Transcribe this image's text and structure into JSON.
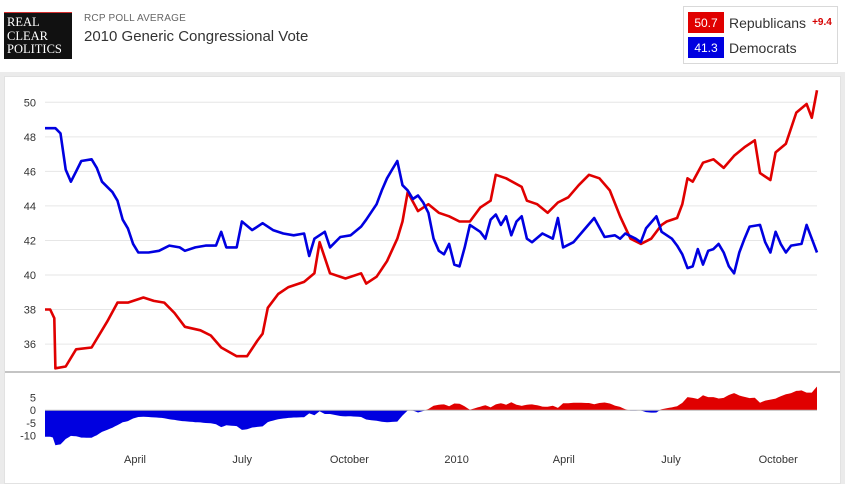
{
  "header": {
    "logo_lines": [
      "REAL",
      "CLEAR",
      "POLITICS"
    ],
    "subtitle": "RCP POLL AVERAGE",
    "title": "2010 Generic Congressional Vote"
  },
  "legend": {
    "republicans": {
      "value": "50.7",
      "label": "Republicans",
      "spread": "+9.4",
      "color": "#e00000"
    },
    "democrats": {
      "value": "41.3",
      "label": "Democrats",
      "color": "#0000e0"
    }
  },
  "chart_data": {
    "type": "line",
    "x_labels": [
      "April",
      "July",
      "October",
      "2010",
      "April",
      "July",
      "October"
    ],
    "y_ticks": [
      36,
      38,
      40,
      42,
      44,
      46,
      48,
      50
    ],
    "ylim": [
      34.5,
      51
    ],
    "grid": true,
    "series": [
      {
        "name": "Republicans",
        "color": "#e00000",
        "points": [
          [
            0,
            38
          ],
          [
            1,
            38
          ],
          [
            1.8,
            37.5
          ],
          [
            2,
            34.6
          ],
          [
            4,
            34.7
          ],
          [
            6,
            35.7
          ],
          [
            9,
            35.8
          ],
          [
            12,
            37.3
          ],
          [
            14,
            38.4
          ],
          [
            16,
            38.4
          ],
          [
            19,
            38.7
          ],
          [
            21,
            38.5
          ],
          [
            23,
            38.4
          ],
          [
            25,
            37.8
          ],
          [
            27,
            37
          ],
          [
            30,
            36.8
          ],
          [
            32,
            36.5
          ],
          [
            34,
            35.8
          ],
          [
            37,
            35.3
          ],
          [
            39,
            35.3
          ],
          [
            41,
            36.2
          ],
          [
            42,
            36.6
          ],
          [
            43,
            38.1
          ],
          [
            45,
            38.9
          ],
          [
            47,
            39.3
          ],
          [
            50,
            39.6
          ],
          [
            52,
            40.1
          ],
          [
            53,
            41.9
          ],
          [
            55,
            40.1
          ],
          [
            58,
            39.8
          ],
          [
            61,
            40.1
          ],
          [
            62,
            39.5
          ],
          [
            64,
            39.9
          ],
          [
            66,
            40.8
          ],
          [
            68,
            42.1
          ],
          [
            69,
            43.1
          ],
          [
            70,
            44.8
          ],
          [
            72,
            43.7
          ],
          [
            74,
            44.1
          ],
          [
            76,
            43.6
          ],
          [
            78,
            43.4
          ],
          [
            80,
            43.1
          ],
          [
            82,
            43.1
          ],
          [
            84,
            43.9
          ],
          [
            86,
            44.3
          ],
          [
            87,
            45.8
          ],
          [
            89,
            45.6
          ],
          [
            92,
            45.1
          ],
          [
            93,
            44.3
          ],
          [
            95,
            44.1
          ],
          [
            97,
            43.6
          ],
          [
            99,
            44.2
          ],
          [
            101,
            44.5
          ],
          [
            103,
            45.2
          ],
          [
            105,
            45.8
          ],
          [
            107,
            45.6
          ],
          [
            109,
            44.9
          ],
          [
            111,
            43.4
          ],
          [
            113,
            42.1
          ],
          [
            115,
            41.8
          ],
          [
            117,
            42.1
          ],
          [
            119,
            42.9
          ],
          [
            120,
            43.1
          ],
          [
            122,
            43.3
          ],
          [
            123,
            44.1
          ],
          [
            124,
            45.6
          ],
          [
            125,
            45.4
          ],
          [
            127,
            46.5
          ],
          [
            129,
            46.7
          ],
          [
            131,
            46.2
          ],
          [
            133,
            46.9
          ],
          [
            135,
            47.4
          ],
          [
            137,
            47.8
          ],
          [
            138,
            45.9
          ],
          [
            140,
            45.5
          ],
          [
            141,
            47.1
          ],
          [
            143,
            47.6
          ],
          [
            145,
            49.4
          ],
          [
            147,
            49.9
          ],
          [
            148,
            49.1
          ],
          [
            149,
            50.7
          ]
        ]
      },
      {
        "name": "Democrats",
        "color": "#0000e0",
        "points": [
          [
            0,
            48.5
          ],
          [
            2,
            48.5
          ],
          [
            3,
            48.2
          ],
          [
            4,
            46.1
          ],
          [
            5,
            45.4
          ],
          [
            6,
            46
          ],
          [
            7,
            46.6
          ],
          [
            9,
            46.7
          ],
          [
            10,
            46.2
          ],
          [
            11,
            45.4
          ],
          [
            13,
            44.8
          ],
          [
            14,
            44.3
          ],
          [
            15,
            43.2
          ],
          [
            16,
            42.7
          ],
          [
            17,
            41.8
          ],
          [
            18,
            41.3
          ],
          [
            20,
            41.3
          ],
          [
            22,
            41.4
          ],
          [
            24,
            41.7
          ],
          [
            26,
            41.6
          ],
          [
            27,
            41.4
          ],
          [
            29,
            41.6
          ],
          [
            31,
            41.7
          ],
          [
            33,
            41.7
          ],
          [
            34,
            42.5
          ],
          [
            35,
            41.6
          ],
          [
            37,
            41.6
          ],
          [
            38,
            43.1
          ],
          [
            40,
            42.6
          ],
          [
            42,
            43
          ],
          [
            44,
            42.6
          ],
          [
            46,
            42.4
          ],
          [
            48,
            42.3
          ],
          [
            50,
            42.4
          ],
          [
            51,
            41.1
          ],
          [
            52,
            42.1
          ],
          [
            54,
            42.5
          ],
          [
            55,
            41.6
          ],
          [
            57,
            42.2
          ],
          [
            59,
            42.3
          ],
          [
            61,
            42.8
          ],
          [
            62,
            43.2
          ],
          [
            64,
            44.1
          ],
          [
            65,
            44.9
          ],
          [
            66,
            45.6
          ],
          [
            67,
            46.1
          ],
          [
            68,
            46.6
          ],
          [
            69,
            45.2
          ],
          [
            70,
            44.9
          ],
          [
            71,
            44.4
          ],
          [
            72,
            44.6
          ],
          [
            73,
            44.2
          ],
          [
            74,
            43.6
          ],
          [
            75,
            42.1
          ],
          [
            76,
            41.4
          ],
          [
            77,
            41.2
          ],
          [
            78,
            41.8
          ],
          [
            79,
            40.6
          ],
          [
            80,
            40.5
          ],
          [
            81,
            41.6
          ],
          [
            82,
            42.9
          ],
          [
            84,
            42.5
          ],
          [
            85,
            42.1
          ],
          [
            86,
            43.2
          ],
          [
            87,
            43.5
          ],
          [
            88,
            42.9
          ],
          [
            89,
            43.4
          ],
          [
            90,
            42.3
          ],
          [
            91,
            43.1
          ],
          [
            92,
            43.4
          ],
          [
            93,
            42.1
          ],
          [
            94,
            41.9
          ],
          [
            96,
            42.4
          ],
          [
            98,
            42.1
          ],
          [
            99,
            43.3
          ],
          [
            100,
            41.6
          ],
          [
            102,
            41.9
          ],
          [
            104,
            42.6
          ],
          [
            106,
            43.3
          ],
          [
            108,
            42.2
          ],
          [
            110,
            42.3
          ],
          [
            111,
            42.1
          ],
          [
            112,
            42.4
          ],
          [
            114,
            42.1
          ],
          [
            115,
            41.9
          ],
          [
            116,
            42.7
          ],
          [
            118,
            43.4
          ],
          [
            119,
            42.5
          ],
          [
            121,
            42.1
          ],
          [
            122,
            41.7
          ],
          [
            123,
            41.2
          ],
          [
            124,
            40.4
          ],
          [
            125,
            40.5
          ],
          [
            126,
            41.5
          ],
          [
            127,
            40.6
          ],
          [
            128,
            41.4
          ],
          [
            129,
            41.5
          ],
          [
            130,
            41.8
          ],
          [
            131,
            41.3
          ],
          [
            132,
            40.5
          ],
          [
            133,
            40.1
          ],
          [
            134,
            41.3
          ],
          [
            135,
            42.1
          ],
          [
            136,
            42.8
          ],
          [
            138,
            42.9
          ],
          [
            139,
            41.9
          ],
          [
            140,
            41.3
          ],
          [
            141,
            42.5
          ],
          [
            142,
            41.8
          ],
          [
            143,
            41.3
          ],
          [
            144,
            41.7
          ],
          [
            146,
            41.8
          ],
          [
            147,
            42.9
          ],
          [
            148,
            42.1
          ],
          [
            149,
            41.3
          ]
        ]
      }
    ],
    "spread": {
      "ylim": [
        -13,
        10
      ],
      "y_ticks": [
        5,
        0,
        -5,
        -10
      ],
      "positive_color": "#e00000",
      "negative_color": "#0000e0"
    }
  }
}
